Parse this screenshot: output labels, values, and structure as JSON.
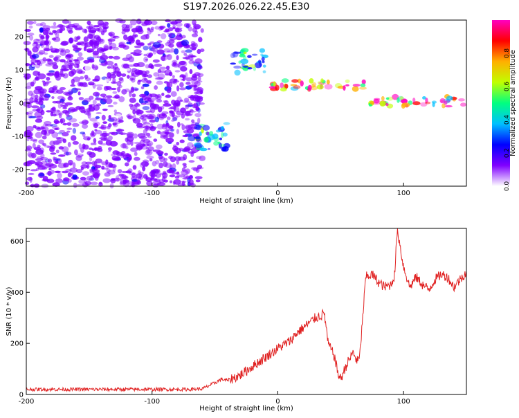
{
  "page": {
    "title": "S197.2026.026.22.45.E30"
  },
  "chart_data": [
    {
      "type": "heatmap",
      "title": "S197.2026.026.22.45.E30",
      "xlabel": "Height of straight line (km)",
      "ylabel": "Frequency (Hz)",
      "xlim": [
        -200,
        150
      ],
      "ylim": [
        -25,
        25
      ],
      "x_ticks": [
        -200,
        -100,
        0,
        100
      ],
      "y_ticks": [
        -20,
        -10,
        0,
        10,
        20
      ],
      "colorbar": {
        "label": "Normalized spectral amplitude",
        "range": [
          0,
          1
        ],
        "ticks": [
          "0.0",
          "0.2",
          "0.4",
          "0.6",
          "0.8"
        ],
        "colormap": [
          "#ffffff",
          "#8000ff",
          "#0000ff",
          "#00c0ff",
          "#00ff80",
          "#c0ff00",
          "#ffb000",
          "#ff0000",
          "#ff00c0"
        ]
      },
      "features": [
        {
          "name": "noise region",
          "x": [
            -200,
            -60
          ],
          "freq": [
            -25,
            25
          ],
          "amplitude": 0.15
        },
        {
          "name": "blob",
          "x": [
            -65,
            -40
          ],
          "freq": [
            -14,
            -6
          ],
          "amplitude": 0.45
        },
        {
          "name": "track",
          "x": [
            -37,
            -10
          ],
          "freq": [
            9,
            16
          ],
          "amplitude": 0.5
        },
        {
          "name": "track",
          "x": [
            -5,
            70
          ],
          "freq": [
            4,
            7
          ],
          "amplitude": 0.95
        },
        {
          "name": "track",
          "x": [
            73,
            150
          ],
          "freq": [
            -1,
            2
          ],
          "amplitude": 0.95
        }
      ]
    },
    {
      "type": "line",
      "xlabel": "Height of straight line (km)",
      "ylabel": "SNR (10 * v/v)",
      "xlim": [
        -200,
        150
      ],
      "ylim": [
        0,
        650
      ],
      "x_ticks": [
        -200,
        -100,
        0,
        100
      ],
      "y_ticks": [
        0,
        200,
        400,
        600
      ],
      "color": "#e02020",
      "series": [
        {
          "x": [
            -200,
            -150,
            -100,
            -70,
            -60,
            -50,
            -45,
            -40,
            -30,
            -20,
            -10,
            0,
            10,
            15,
            20,
            25,
            30,
            35,
            37,
            40,
            45,
            48,
            50,
            55,
            60,
            63,
            65,
            70,
            75,
            80,
            85,
            90,
            93,
            95,
            100,
            105,
            110,
            115,
            120,
            125,
            130,
            135,
            140,
            145,
            150
          ],
          "values": [
            20,
            20,
            20,
            20,
            22,
            45,
            60,
            55,
            75,
            110,
            145,
            180,
            210,
            240,
            260,
            280,
            300,
            310,
            320,
            200,
            150,
            80,
            60,
            120,
            165,
            130,
            140,
            460,
            470,
            440,
            420,
            430,
            470,
            650,
            500,
            420,
            460,
            430,
            410,
            450,
            470,
            460,
            420,
            450,
            480
          ]
        }
      ]
    }
  ]
}
